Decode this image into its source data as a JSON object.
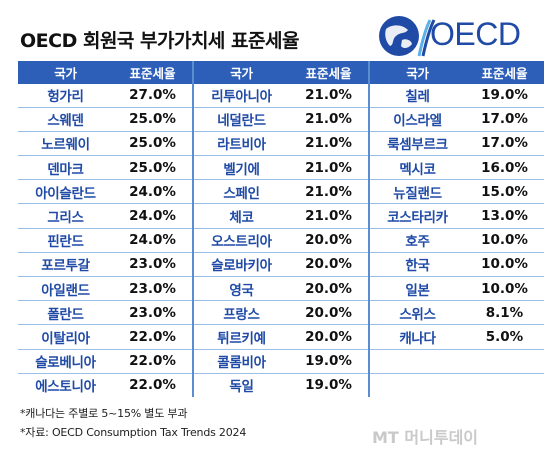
{
  "title": "OECD 회원국 부가가치세 표준세율",
  "logo": {
    "text": "OECD"
  },
  "table": {
    "headers": {
      "country": "국가",
      "rate": "표준세율"
    },
    "columns": [
      [
        {
          "country": "헝가리",
          "rate": "27.0%"
        },
        {
          "country": "스웨덴",
          "rate": "25.0%"
        },
        {
          "country": "노르웨이",
          "rate": "25.0%"
        },
        {
          "country": "덴마크",
          "rate": "25.0%"
        },
        {
          "country": "아이슬란드",
          "rate": "24.0%"
        },
        {
          "country": "그리스",
          "rate": "24.0%"
        },
        {
          "country": "핀란드",
          "rate": "24.0%"
        },
        {
          "country": "포르투갈",
          "rate": "23.0%"
        },
        {
          "country": "아일랜드",
          "rate": "23.0%"
        },
        {
          "country": "폴란드",
          "rate": "23.0%"
        },
        {
          "country": "이탈리아",
          "rate": "22.0%"
        },
        {
          "country": "슬로베니아",
          "rate": "22.0%"
        },
        {
          "country": "에스토니아",
          "rate": "22.0%"
        }
      ],
      [
        {
          "country": "리투아니아",
          "rate": "21.0%"
        },
        {
          "country": "네덜란드",
          "rate": "21.0%"
        },
        {
          "country": "라트비아",
          "rate": "21.0%"
        },
        {
          "country": "벨기에",
          "rate": "21.0%"
        },
        {
          "country": "스페인",
          "rate": "21.0%"
        },
        {
          "country": "체코",
          "rate": "21.0%"
        },
        {
          "country": "오스트리아",
          "rate": "20.0%"
        },
        {
          "country": "슬로바키아",
          "rate": "20.0%"
        },
        {
          "country": "영국",
          "rate": "20.0%"
        },
        {
          "country": "프랑스",
          "rate": "20.0%"
        },
        {
          "country": "튀르키예",
          "rate": "20.0%"
        },
        {
          "country": "콜롬비아",
          "rate": "19.0%"
        },
        {
          "country": "독일",
          "rate": "19.0%"
        }
      ],
      [
        {
          "country": "칠레",
          "rate": "19.0%"
        },
        {
          "country": "이스라엘",
          "rate": "17.0%"
        },
        {
          "country": "룩셈부르크",
          "rate": "17.0%"
        },
        {
          "country": "멕시코",
          "rate": "16.0%"
        },
        {
          "country": "뉴질랜드",
          "rate": "15.0%"
        },
        {
          "country": "코스타리카",
          "rate": "13.0%"
        },
        {
          "country": "호주",
          "rate": "10.0%"
        },
        {
          "country": "한국",
          "rate": "10.0%"
        },
        {
          "country": "일본",
          "rate": "10.0%"
        },
        {
          "country": "스위스",
          "rate": "8.1%"
        },
        {
          "country": "캐나다",
          "rate": "5.0%"
        },
        {
          "country": "",
          "rate": ""
        },
        {
          "country": "",
          "rate": ""
        }
      ]
    ]
  },
  "notes": [
    "*캐나다는 주별로 5~15% 별도 부과",
    "*자료: OECD Consumption Tax Trends 2024"
  ],
  "credit": "MT 머니투데이",
  "colors": {
    "header": "#2d5fb8",
    "country_text": "#1f4aa6",
    "row_line": "#9fc0e6"
  },
  "chart_data": {
    "type": "table",
    "title": "OECD 회원국 부가가치세 표준세율",
    "columns": [
      "국가",
      "표준세율"
    ],
    "rows": [
      [
        "헝가리",
        27.0
      ],
      [
        "스웨덴",
        25.0
      ],
      [
        "노르웨이",
        25.0
      ],
      [
        "덴마크",
        25.0
      ],
      [
        "아이슬란드",
        24.0
      ],
      [
        "그리스",
        24.0
      ],
      [
        "핀란드",
        24.0
      ],
      [
        "포르투갈",
        23.0
      ],
      [
        "아일랜드",
        23.0
      ],
      [
        "폴란드",
        23.0
      ],
      [
        "이탈리아",
        22.0
      ],
      [
        "슬로베니아",
        22.0
      ],
      [
        "에스토니아",
        22.0
      ],
      [
        "리투아니아",
        21.0
      ],
      [
        "네덜란드",
        21.0
      ],
      [
        "라트비아",
        21.0
      ],
      [
        "벨기에",
        21.0
      ],
      [
        "스페인",
        21.0
      ],
      [
        "체코",
        21.0
      ],
      [
        "오스트리아",
        20.0
      ],
      [
        "슬로바키아",
        20.0
      ],
      [
        "영국",
        20.0
      ],
      [
        "프랑스",
        20.0
      ],
      [
        "튀르키예",
        20.0
      ],
      [
        "콜롬비아",
        19.0
      ],
      [
        "독일",
        19.0
      ],
      [
        "칠레",
        19.0
      ],
      [
        "이스라엘",
        17.0
      ],
      [
        "룩셈부르크",
        17.0
      ],
      [
        "멕시코",
        16.0
      ],
      [
        "뉴질랜드",
        15.0
      ],
      [
        "코스타리카",
        13.0
      ],
      [
        "호주",
        10.0
      ],
      [
        "한국",
        10.0
      ],
      [
        "일본",
        10.0
      ],
      [
        "스위스",
        8.1
      ],
      [
        "캐나다",
        5.0
      ]
    ]
  }
}
